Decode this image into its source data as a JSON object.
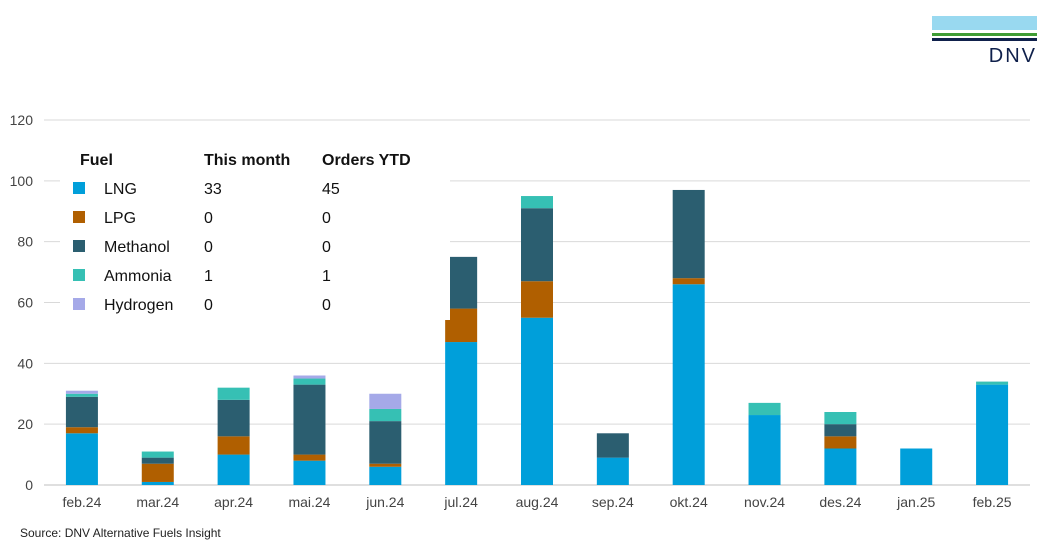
{
  "logo": {
    "text": "DNV",
    "colors": [
      "#99d9f0",
      "#3f9c35",
      "#0f204b"
    ]
  },
  "source": "Source: DNV Alternative Fuels Insight",
  "legend": {
    "headers": [
      "Fuel",
      "This month",
      "Orders YTD"
    ],
    "rows": [
      {
        "fuel": "LNG",
        "this_month": "33",
        "ytd": "45"
      },
      {
        "fuel": "LPG",
        "this_month": "0",
        "ytd": "0"
      },
      {
        "fuel": "Methanol",
        "this_month": "0",
        "ytd": "0"
      },
      {
        "fuel": "Ammonia",
        "this_month": "1",
        "ytd": "1"
      },
      {
        "fuel": "Hydrogen",
        "this_month": "0",
        "ytd": "0"
      }
    ]
  },
  "chart_data": {
    "type": "bar",
    "stacked": true,
    "categories": [
      "feb.24",
      "mar.24",
      "apr.24",
      "mai.24",
      "jun.24",
      "jul.24",
      "aug.24",
      "sep.24",
      "okt.24",
      "nov.24",
      "des.24",
      "jan.25",
      "feb.25"
    ],
    "ylim": [
      0,
      120
    ],
    "yticks": [
      0,
      20,
      40,
      60,
      80,
      100,
      120
    ],
    "grid": true,
    "legend_position": "top-left",
    "series": [
      {
        "name": "LNG",
        "color": "#009fda",
        "values": [
          17,
          1,
          10,
          8,
          6,
          47,
          55,
          9,
          66,
          23,
          12,
          12,
          33
        ]
      },
      {
        "name": "LPG",
        "color": "#b05f00",
        "values": [
          2,
          6,
          6,
          2,
          1,
          11,
          12,
          0,
          2,
          0,
          4,
          0,
          0
        ]
      },
      {
        "name": "Methanol",
        "color": "#2b5e70",
        "values": [
          10,
          2,
          12,
          23,
          14,
          17,
          24,
          8,
          29,
          0,
          4,
          0,
          0
        ]
      },
      {
        "name": "Ammonia",
        "color": "#36c0b4",
        "values": [
          1,
          2,
          4,
          2,
          4,
          0,
          4,
          0,
          0,
          4,
          4,
          0,
          1
        ]
      },
      {
        "name": "Hydrogen",
        "color": "#a5a9e8",
        "values": [
          1,
          0,
          0,
          1,
          5,
          0,
          0,
          0,
          0,
          0,
          0,
          0,
          0
        ]
      }
    ]
  }
}
